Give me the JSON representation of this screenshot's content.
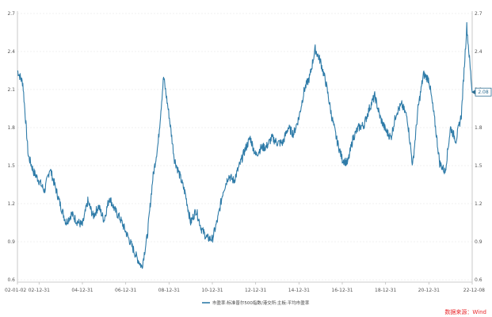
{
  "chart_data": {
    "type": "line",
    "title": "",
    "xlabel": "",
    "ylabel": "",
    "ylim": [
      0.6,
      2.7
    ],
    "yticks": [
      0.6,
      0.9,
      1.2,
      1.5,
      1.8,
      2.1,
      2.4,
      2.7
    ],
    "xtick_labels": [
      "02-01-02",
      "02-12-31",
      "04-12-31",
      "06-12-31",
      "08-12-31",
      "10-12-31",
      "12-12-31",
      "14-12-31",
      "16-12-31",
      "18-12-31",
      "20-12-31",
      "22-12-08"
    ],
    "xtick_index": [
      0,
      4,
      12,
      20,
      28,
      36,
      44,
      52,
      60,
      68,
      76,
      84
    ],
    "grid": true,
    "legend_position": "bottom",
    "series": [
      {
        "name": "市盈率:标准普尔500指数/港交所:主板:平均市盈率",
        "color": "#2e7ba8",
        "values": [
          2.25,
          2.15,
          1.58,
          1.45,
          1.38,
          1.3,
          1.48,
          1.33,
          1.18,
          1.05,
          1.12,
          1.06,
          1.03,
          1.22,
          1.1,
          1.18,
          1.07,
          1.25,
          1.15,
          1.08,
          0.98,
          0.88,
          0.78,
          0.7,
          0.95,
          1.4,
          1.68,
          2.2,
          1.9,
          1.55,
          1.42,
          1.28,
          1.05,
          1.15,
          1.0,
          0.93,
          0.92,
          1.08,
          1.3,
          1.42,
          1.38,
          1.5,
          1.62,
          1.72,
          1.58,
          1.64,
          1.65,
          1.72,
          1.68,
          1.68,
          1.8,
          1.75,
          1.88,
          2.1,
          2.2,
          2.42,
          2.32,
          2.15,
          1.9,
          1.7,
          1.55,
          1.52,
          1.72,
          1.8,
          1.82,
          1.95,
          2.05,
          1.88,
          1.78,
          1.72,
          1.92,
          1.98,
          1.88,
          1.5,
          1.95,
          2.22,
          2.18,
          1.88,
          1.52,
          1.45,
          1.8,
          1.7,
          1.9,
          2.6,
          2.08
        ],
        "last_value_label": "2.08"
      }
    ],
    "source": "数据来源：Wind"
  }
}
